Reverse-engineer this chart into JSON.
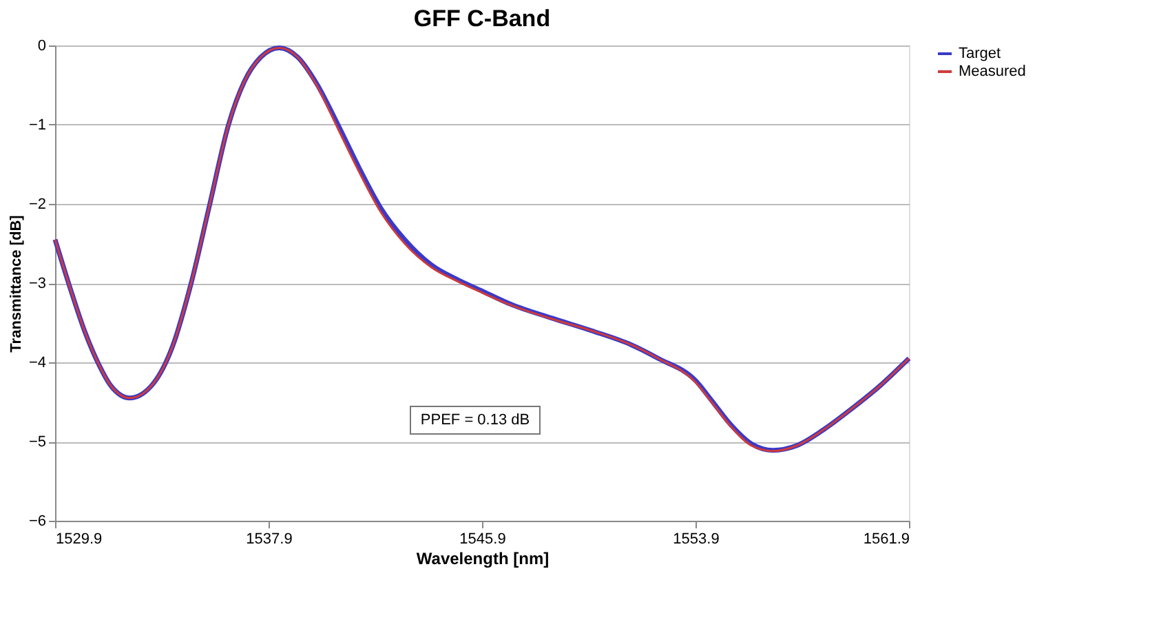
{
  "chart_data": {
    "type": "line",
    "title": "GFF C-Band",
    "xlabel": "Wavelength [nm]",
    "ylabel": "Transmittance [dB]",
    "xlim": [
      1529.9,
      1561.9
    ],
    "xticks": [
      1529.9,
      1537.9,
      1545.9,
      1553.9,
      1561.9
    ],
    "ylim": [
      -6,
      0
    ],
    "yticks": [
      -6,
      -5,
      -4,
      -3,
      -2,
      -1,
      0
    ],
    "grid": "y",
    "legend": "right",
    "line_style": "solid",
    "marker": "none",
    "annotations": [
      "PPEF = 0.13 dB"
    ],
    "x": [
      1529.9,
      1530.5,
      1531.0,
      1531.5,
      1532.0,
      1532.7,
      1533.5,
      1534.3,
      1535.0,
      1535.7,
      1536.4,
      1537.0,
      1537.6,
      1538.3,
      1539.0,
      1539.7,
      1540.5,
      1541.3,
      1542.1,
      1543.0,
      1544.0,
      1545.0,
      1545.9,
      1547.0,
      1548.5,
      1550.0,
      1551.5,
      1552.5,
      1553.9,
      1554.5,
      1555.2,
      1556.0,
      1556.8,
      1557.7,
      1558.7,
      1559.7,
      1560.8,
      1561.9
    ],
    "series": [
      {
        "name": "Target",
        "color": "#3a3ac8",
        "values": [
          -2.45,
          -3.1,
          -3.6,
          -4.0,
          -4.3,
          -4.45,
          -4.3,
          -3.8,
          -3.0,
          -2.0,
          -1.0,
          -0.45,
          -0.15,
          -0.03,
          -0.15,
          -0.48,
          -1.0,
          -1.55,
          -2.05,
          -2.45,
          -2.77,
          -2.96,
          -3.1,
          -3.27,
          -3.44,
          -3.6,
          -3.78,
          -3.95,
          -4.23,
          -4.48,
          -4.78,
          -5.03,
          -5.11,
          -5.05,
          -4.85,
          -4.6,
          -4.3,
          -3.95
        ]
      },
      {
        "name": "Measured",
        "color": "#d03a3a",
        "values": [
          -2.45,
          -3.1,
          -3.6,
          -4.0,
          -4.3,
          -4.45,
          -4.3,
          -3.8,
          -3.0,
          -2.0,
          -1.0,
          -0.45,
          -0.15,
          -0.03,
          -0.15,
          -0.5,
          -1.05,
          -1.6,
          -2.1,
          -2.5,
          -2.8,
          -2.98,
          -3.12,
          -3.28,
          -3.45,
          -3.6,
          -3.78,
          -3.95,
          -4.25,
          -4.5,
          -4.8,
          -5.05,
          -5.12,
          -5.05,
          -4.85,
          -4.6,
          -4.3,
          -3.95
        ]
      }
    ]
  }
}
